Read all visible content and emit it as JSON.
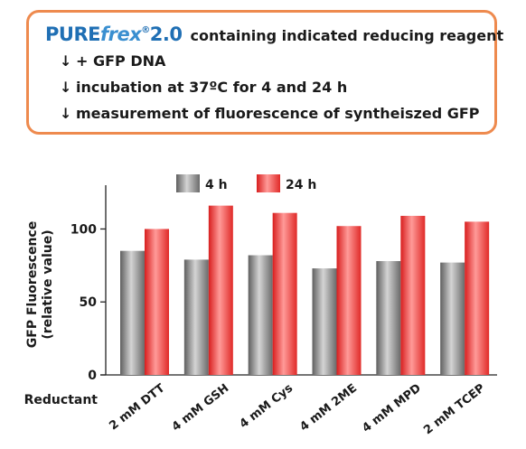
{
  "protocol": {
    "brand_pure": "PURE",
    "brand_frex": "frex",
    "brand_reg": "®",
    "brand_version": "2.0",
    "line1_text": "containing indicated reducing reagent",
    "steps": [
      "+ GFP DNA",
      "incubation at 37ºC for 4 and 24 h",
      "measurement of fluorescence of syntheiszed GFP"
    ],
    "arrow_glyph": "↓",
    "border_color": "#ee8a4e",
    "brand_color": "#1f6fb4"
  },
  "chart_data": {
    "type": "bar",
    "categories": [
      "2 mM DTT",
      "4 mM GSH",
      "4 mM Cys",
      "4 mM 2ME",
      "4 mM MPD",
      "2 mM TCEP"
    ],
    "series": [
      {
        "name": "4 h",
        "values": [
          85,
          79,
          82,
          73,
          78,
          77
        ],
        "color": "#8a8a8a"
      },
      {
        "name": "24 h",
        "values": [
          100,
          116,
          111,
          102,
          109,
          105
        ],
        "color": "#e8332e"
      }
    ],
    "ylabel_line1": "GFP Fluorescence",
    "ylabel_line2": "(relative value)",
    "xlabel": "Reductant",
    "yticks": [
      0,
      50,
      100
    ],
    "ylim": [
      0,
      130
    ],
    "legend_position": "top"
  }
}
